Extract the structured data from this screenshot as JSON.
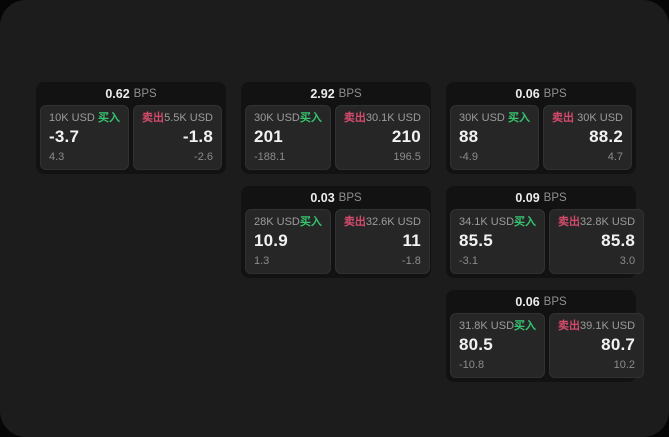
{
  "theme": {
    "page_bg": "#060606",
    "window_bg": "#1c1c1d",
    "card_bg": "#121213",
    "panel_bg": "#262627",
    "text_primary": "#f2f2f2",
    "text_muted": "#9c9c9c",
    "buy_color": "#36c56f",
    "sell_color": "#d34a6a"
  },
  "labels": {
    "buy": "买入",
    "sell": "卖出",
    "bps_unit": "BPS"
  },
  "cards": [
    {
      "column": 1,
      "bps": "0.62",
      "buy": {
        "amount": "10K USD",
        "price": "-3.7",
        "delta": "4.3"
      },
      "sell": {
        "amount": "5.5K USD",
        "price": "-1.8",
        "delta": "-2.6"
      }
    },
    {
      "column": 2,
      "bps": "2.92",
      "buy": {
        "amount": "30K USD",
        "price": "201",
        "delta": "-188.1"
      },
      "sell": {
        "amount": "30.1K USD",
        "price": "210",
        "delta": "196.5"
      }
    },
    {
      "column": 2,
      "bps": "0.03",
      "buy": {
        "amount": "28K USD",
        "price": "10.9",
        "delta": "1.3"
      },
      "sell": {
        "amount": "32.6K USD",
        "price": "11",
        "delta": "-1.8"
      }
    },
    {
      "column": 3,
      "bps": "0.06",
      "buy": {
        "amount": "30K USD",
        "price": "88",
        "delta": "-4.9"
      },
      "sell": {
        "amount": "30K USD",
        "price": "88.2",
        "delta": "4.7"
      }
    },
    {
      "column": 3,
      "bps": "0.09",
      "buy": {
        "amount": "34.1K USD",
        "price": "85.5",
        "delta": "-3.1"
      },
      "sell": {
        "amount": "32.8K USD",
        "price": "85.8",
        "delta": "3.0"
      }
    },
    {
      "column": 3,
      "bps": "0.06",
      "buy": {
        "amount": "31.8K USD",
        "price": "80.5",
        "delta": "-10.8"
      },
      "sell": {
        "amount": "39.1K USD",
        "price": "80.7",
        "delta": "10.2"
      }
    }
  ]
}
